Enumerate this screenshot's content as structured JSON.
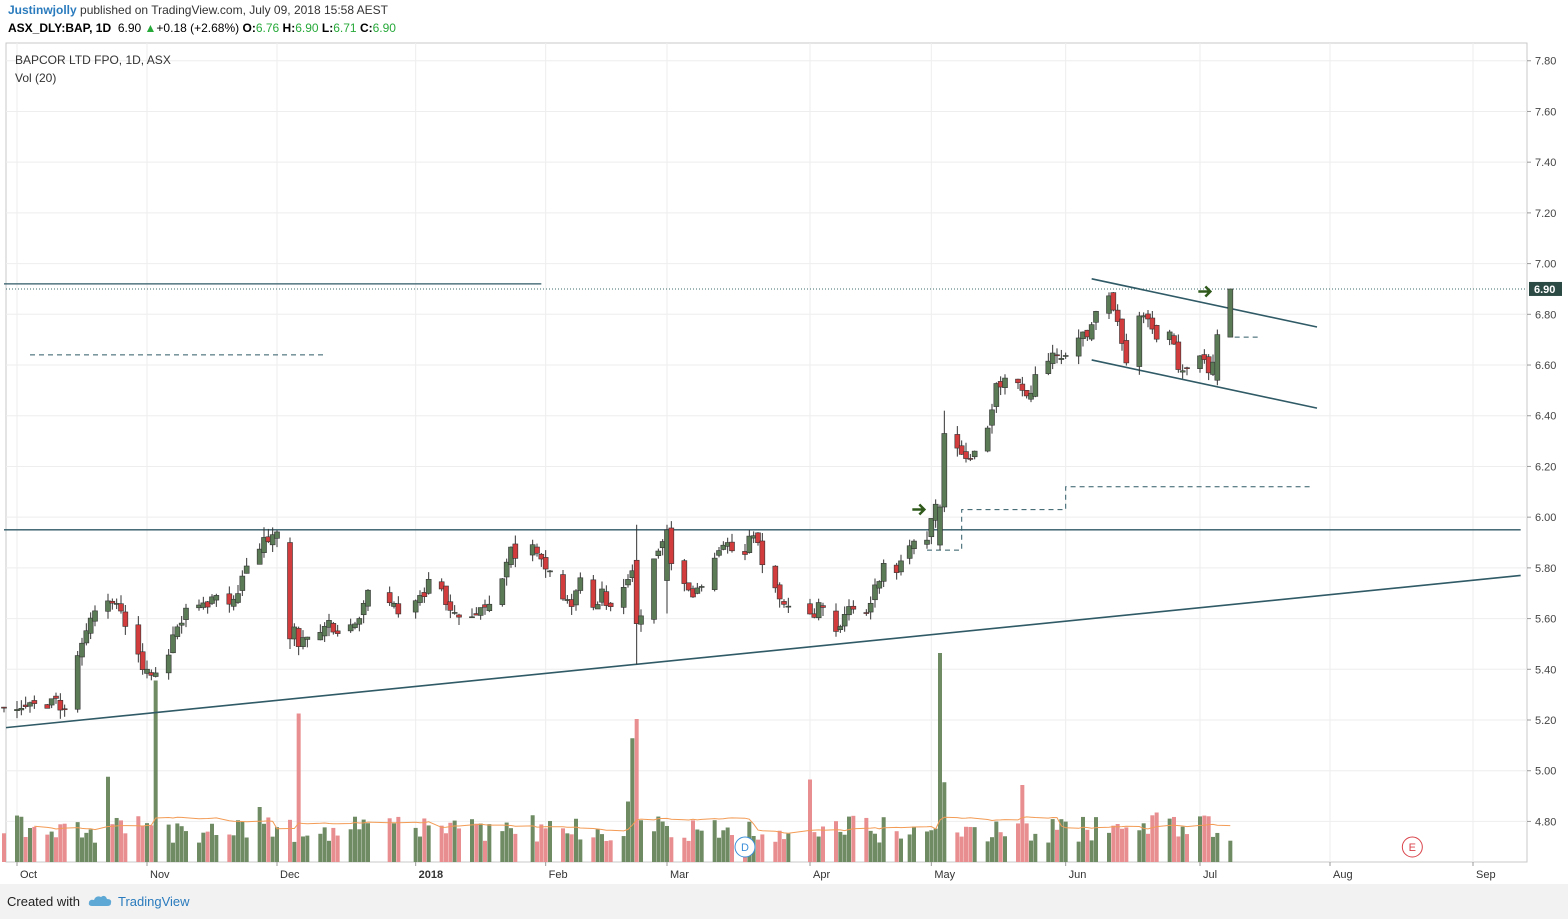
{
  "header": {
    "author": "Justinwjolly",
    "published": "published on TradingView.com, July 09, 2018 15:58 AEST",
    "symbol": "ASX_DLY:BAP, 1D",
    "last": "6.90",
    "change": "+0.18 (+2.68%)",
    "o_label": "O:",
    "o": "6.76",
    "h_label": "H:",
    "h": "6.90",
    "l_label": "L:",
    "l": "6.71",
    "c_label": "C:",
    "c": "6.90"
  },
  "legend": {
    "title": "BAPCOR LTD FPO, 1D, ASX",
    "volume": "Vol (20)"
  },
  "footer": {
    "created": "Created with",
    "brand": "TradingView"
  },
  "colors": {
    "up": "#5b7b56",
    "down": "#d23c3c",
    "vol_up": "#6f8b64",
    "vol_down": "#e88e90",
    "line": "#2f5a66",
    "ma": "#f39b55",
    "price_tag": "#2c4a44"
  },
  "chart_data": {
    "type": "candlestick",
    "y_ticks": [
      4.8,
      5.0,
      5.2,
      5.4,
      5.6,
      5.8,
      6.0,
      6.2,
      6.4,
      6.6,
      6.8,
      7.0,
      7.2,
      7.4,
      7.6,
      7.8
    ],
    "y_tick_labels": [
      "4.80",
      "5.00",
      "5.20",
      "5.40",
      "5.60",
      "5.80",
      "6.00",
      "6.20",
      "6.40",
      "6.60",
      "6.80",
      "7.00",
      "7.20",
      "7.40",
      "7.60",
      "7.80"
    ],
    "ylim": [
      4.64,
      7.87
    ],
    "x_labels": [
      "Oct",
      "Nov",
      "Dec",
      "2018",
      "Feb",
      "Mar",
      "Apr",
      "May",
      "Jun",
      "Jul",
      "Aug",
      "Sep"
    ],
    "x_label_dates": [
      "2017-10-02",
      "2017-11-01",
      "2017-12-01",
      "2018-01-02",
      "2018-02-01",
      "2018-03-01",
      "2018-04-03",
      "2018-05-01",
      "2018-06-01",
      "2018-07-02",
      "2018-08-01",
      "2018-09-03"
    ],
    "last_price": 6.9,
    "last_price_label": "6.90",
    "anchors": [
      [
        "2017-09-29",
        5.25
      ],
      [
        "2017-10-04",
        5.24
      ],
      [
        "2017-10-06",
        5.27
      ],
      [
        "2017-10-09",
        5.24
      ],
      [
        "2017-10-11",
        5.29
      ],
      [
        "2017-10-13",
        5.22
      ],
      [
        "2017-10-16",
        5.45
      ],
      [
        "2017-10-18",
        5.55
      ],
      [
        "2017-10-20",
        5.62
      ],
      [
        "2017-10-23",
        5.66
      ],
      [
        "2017-10-25",
        5.68
      ],
      [
        "2017-10-27",
        5.56
      ],
      [
        "2017-10-30",
        5.45
      ],
      [
        "2017-11-01",
        5.38
      ],
      [
        "2017-11-03",
        5.4
      ],
      [
        "2017-11-06",
        5.47
      ],
      [
        "2017-11-08",
        5.56
      ],
      [
        "2017-11-10",
        5.62
      ],
      [
        "2017-11-13",
        5.65
      ],
      [
        "2017-11-15",
        5.67
      ],
      [
        "2017-11-17",
        5.71
      ],
      [
        "2017-11-20",
        5.68
      ],
      [
        "2017-11-22",
        5.7
      ],
      [
        "2017-11-24",
        5.8
      ],
      [
        "2017-11-27",
        5.88
      ],
      [
        "2017-11-29",
        5.9
      ],
      [
        "2017-12-01",
        5.92
      ],
      [
        "2017-12-04",
        5.66
      ],
      [
        "2017-12-06",
        5.5
      ],
      [
        "2017-12-08",
        5.55
      ],
      [
        "2017-12-11",
        5.55
      ],
      [
        "2017-12-13",
        5.57
      ],
      [
        "2017-12-15",
        5.55
      ],
      [
        "2017-12-18",
        5.58
      ],
      [
        "2017-12-20",
        5.62
      ],
      [
        "2017-12-22",
        5.7
      ],
      [
        "2017-12-27",
        5.66
      ],
      [
        "2017-12-29",
        5.64
      ],
      [
        "2018-01-03",
        5.68
      ],
      [
        "2018-01-05",
        5.73
      ],
      [
        "2018-01-08",
        5.72
      ],
      [
        "2018-01-10",
        5.62
      ],
      [
        "2018-01-12",
        5.6
      ],
      [
        "2018-01-15",
        5.62
      ],
      [
        "2018-01-17",
        5.65
      ],
      [
        "2018-01-19",
        5.66
      ],
      [
        "2018-01-22",
        5.75
      ],
      [
        "2018-01-24",
        5.88
      ],
      [
        "2018-01-26",
        5.84
      ],
      [
        "2018-01-29",
        5.9
      ],
      [
        "2018-01-31",
        5.84
      ],
      [
        "2018-02-02",
        5.8
      ],
      [
        "2018-02-05",
        5.7
      ],
      [
        "2018-02-07",
        5.65
      ],
      [
        "2018-02-09",
        5.78
      ],
      [
        "2018-02-12",
        5.66
      ],
      [
        "2018-02-14",
        5.7
      ],
      [
        "2018-02-16",
        5.65
      ],
      [
        "2018-02-19",
        5.72
      ],
      [
        "2018-02-21",
        5.8
      ],
      [
        "2018-02-23",
        5.6
      ],
      [
        "2018-02-26",
        5.85
      ],
      [
        "2018-02-28",
        5.92
      ],
      [
        "2018-03-02",
        5.84
      ],
      [
        "2018-03-05",
        5.75
      ],
      [
        "2018-03-07",
        5.68
      ],
      [
        "2018-03-09",
        5.75
      ],
      [
        "2018-03-12",
        5.84
      ],
      [
        "2018-03-14",
        5.9
      ],
      [
        "2018-03-16",
        5.88
      ],
      [
        "2018-03-19",
        5.86
      ],
      [
        "2018-03-21",
        5.95
      ],
      [
        "2018-03-23",
        5.8
      ],
      [
        "2018-03-26",
        5.72
      ],
      [
        "2018-03-28",
        5.65
      ],
      [
        "2018-04-03",
        5.6
      ],
      [
        "2018-04-05",
        5.65
      ],
      [
        "2018-04-09",
        5.56
      ],
      [
        "2018-04-11",
        5.62
      ],
      [
        "2018-04-13",
        5.65
      ],
      [
        "2018-04-16",
        5.62
      ],
      [
        "2018-04-18",
        5.72
      ],
      [
        "2018-04-20",
        5.82
      ],
      [
        "2018-04-23",
        5.78
      ],
      [
        "2018-04-25",
        5.84
      ],
      [
        "2018-04-27",
        5.9
      ],
      [
        "2018-04-30",
        5.93
      ],
      [
        "2018-05-02",
        6.05
      ],
      [
        "2018-05-04",
        6.3
      ],
      [
        "2018-05-07",
        6.25
      ],
      [
        "2018-05-09",
        6.22
      ],
      [
        "2018-05-11",
        6.28
      ],
      [
        "2018-05-14",
        6.33
      ],
      [
        "2018-05-16",
        6.52
      ],
      [
        "2018-05-18",
        6.54
      ],
      [
        "2018-05-21",
        6.52
      ],
      [
        "2018-05-23",
        6.46
      ],
      [
        "2018-05-25",
        6.55
      ],
      [
        "2018-05-28",
        6.62
      ],
      [
        "2018-05-30",
        6.64
      ],
      [
        "2018-06-01",
        6.66
      ],
      [
        "2018-06-04",
        6.73
      ],
      [
        "2018-06-06",
        6.7
      ],
      [
        "2018-06-08",
        6.83
      ],
      [
        "2018-06-11",
        6.88
      ],
      [
        "2018-06-13",
        6.76
      ],
      [
        "2018-06-15",
        6.6
      ],
      [
        "2018-06-18",
        6.78
      ],
      [
        "2018-06-20",
        6.8
      ],
      [
        "2018-06-22",
        6.72
      ],
      [
        "2018-06-25",
        6.75
      ],
      [
        "2018-06-27",
        6.6
      ],
      [
        "2018-06-29",
        6.58
      ],
      [
        "2018-07-02",
        6.66
      ],
      [
        "2018-07-04",
        6.55
      ],
      [
        "2018-07-06",
        6.72
      ],
      [
        "2018-07-09",
        6.9
      ]
    ],
    "big_candles": [
      {
        "date": "2017-11-28",
        "o": 5.86,
        "h": 5.96,
        "l": 5.84,
        "c": 5.92
      },
      {
        "date": "2017-12-04",
        "o": 5.9,
        "h": 5.92,
        "l": 5.48,
        "c": 5.52
      },
      {
        "date": "2018-02-22",
        "o": 5.83,
        "h": 5.97,
        "l": 5.42,
        "c": 5.58
      },
      {
        "date": "2018-03-01",
        "o": 5.75,
        "h": 5.97,
        "l": 5.62,
        "c": 5.95
      },
      {
        "date": "2018-05-03",
        "o": 5.89,
        "h": 6.05,
        "l": 5.87,
        "c": 6.04
      },
      {
        "date": "2018-05-04",
        "o": 6.04,
        "h": 6.42,
        "l": 6.02,
        "c": 6.33
      },
      {
        "date": "2018-07-06",
        "o": 6.54,
        "h": 6.74,
        "l": 6.52,
        "c": 6.72
      },
      {
        "date": "2018-07-09",
        "o": 6.71,
        "h": 6.9,
        "l": 6.71,
        "c": 6.9
      }
    ],
    "volume_spikes": [
      {
        "date": "2017-11-03",
        "v": 3.3
      },
      {
        "date": "2017-10-23",
        "v": 1.55
      },
      {
        "date": "2017-12-06",
        "v": 2.7
      },
      {
        "date": "2018-02-21",
        "v": 2.25
      },
      {
        "date": "2018-02-22",
        "v": 2.6
      },
      {
        "date": "2018-05-03",
        "v": 3.8
      },
      {
        "date": "2018-05-04",
        "v": 1.45
      },
      {
        "date": "2018-04-03",
        "v": 1.5
      },
      {
        "date": "2018-05-22",
        "v": 1.4
      },
      {
        "date": "2018-06-22",
        "v": 0.9
      },
      {
        "date": "2017-11-27",
        "v": 1.0
      },
      {
        "date": "2018-01-29",
        "v": 0.85
      },
      {
        "date": "2018-02-20",
        "v": 1.1
      }
    ],
    "annotations": {
      "lines": [
        {
          "kind": "trend",
          "from": [
            "2017-09-29",
            5.17
          ],
          "to": [
            "2018-09-14",
            5.77
          ]
        },
        {
          "kind": "horizontal",
          "y": 5.95,
          "from": "2017-09-29",
          "to": "2018-09-14"
        },
        {
          "kind": "horizontal",
          "y": 6.92,
          "from": "2017-09-29",
          "to": "2018-01-31"
        },
        {
          "kind": "channel-top",
          "from": [
            "2018-06-07",
            6.94
          ],
          "to": [
            "2018-07-29",
            6.75
          ]
        },
        {
          "kind": "channel-bottom",
          "from": [
            "2018-06-07",
            6.62
          ],
          "to": [
            "2018-07-29",
            6.43
          ]
        }
      ],
      "dashed": [
        {
          "kind": "hline",
          "y": 6.64,
          "from": "2017-10-05",
          "to": "2017-12-12"
        },
        {
          "kind": "step",
          "points": [
            [
              "2018-04-30",
              5.87
            ],
            [
              "2018-05-08",
              5.87
            ],
            [
              "2018-05-08",
              6.03
            ],
            [
              "2018-06-01",
              6.03
            ],
            [
              "2018-06-01",
              6.12
            ],
            [
              "2018-07-28",
              6.12
            ]
          ]
        },
        {
          "kind": "hline",
          "y": 6.71,
          "from": "2018-07-10",
          "to": "2018-07-16"
        }
      ],
      "arrows": [
        {
          "date": "2018-05-01",
          "y": 6.03
        },
        {
          "date": "2018-07-06",
          "y": 6.89
        }
      ],
      "events": [
        {
          "letter": "D",
          "date": "2018-03-19"
        },
        {
          "letter": "E",
          "date": "2018-08-20"
        }
      ]
    }
  }
}
